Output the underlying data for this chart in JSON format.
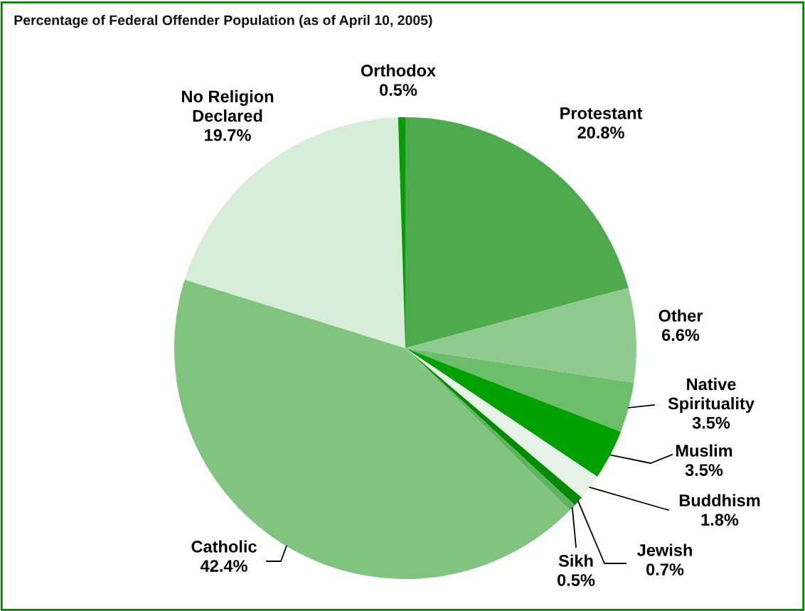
{
  "chart_data": {
    "type": "pie",
    "title": "Percentage of Federal Offender Population (as of April 10, 2005)",
    "categories": [
      "Protestant",
      "Other",
      "Native\nSpirituality",
      "Muslim",
      "Buddhism",
      "Jewish",
      "Sikh",
      "Catholic",
      "No Religion\nDeclared",
      "Orthodox"
    ],
    "values": [
      20.8,
      6.6,
      3.5,
      3.5,
      1.8,
      0.7,
      0.5,
      42.4,
      19.7,
      0.5
    ],
    "value_labels": [
      "20.8%",
      "6.6%",
      "3.5%",
      "3.5%",
      "1.8%",
      "0.7%",
      "0.5%",
      "42.4%",
      "19.7%",
      "0.5%"
    ],
    "colors": [
      "#4dab4d",
      "#8fcb8f",
      "#6cbd6c",
      "#00a000",
      "#e6f3e6",
      "#008c00",
      "#5fb55f",
      "#80c480",
      "#d8edd8",
      "#00a000"
    ]
  }
}
